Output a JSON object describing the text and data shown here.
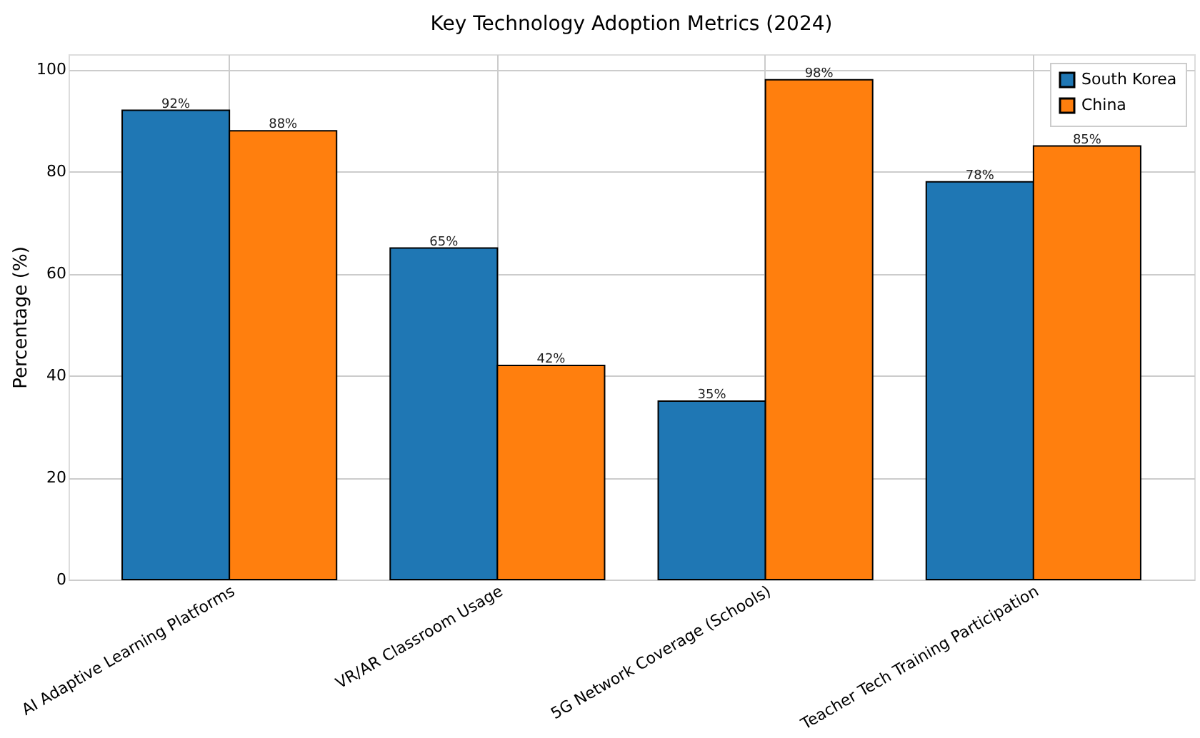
{
  "chart_data": {
    "type": "bar",
    "title": "Key Technology Adoption Metrics (2024)",
    "ylabel": "Percentage (%)",
    "categories": [
      "AI Adaptive Learning Platforms",
      "VR/AR Classroom Usage",
      "5G Network Coverage (Schools)",
      "Teacher Tech Training Participation"
    ],
    "series": [
      {
        "name": "South Korea",
        "color": "#1f77b4",
        "values": [
          92,
          65,
          35,
          78
        ],
        "value_labels": [
          "92%",
          "65%",
          "35%",
          "78%"
        ]
      },
      {
        "name": "China",
        "color": "#ff7f0e",
        "values": [
          88,
          42,
          98,
          85
        ],
        "value_labels": [
          "88%",
          "42%",
          "98%",
          "85%"
        ]
      }
    ],
    "ylim": [
      0,
      103
    ],
    "yticks": [
      0,
      20,
      40,
      60,
      80,
      100
    ],
    "grid": true,
    "legend": "top right"
  }
}
